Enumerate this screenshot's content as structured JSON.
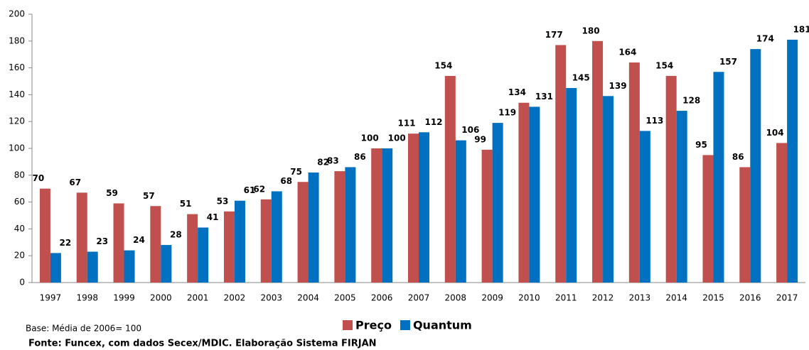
{
  "chart_data": {
    "type": "bar",
    "categories": [
      "1997",
      "1998",
      "1999",
      "2000",
      "2001",
      "2002",
      "2003",
      "2004",
      "2005",
      "2006",
      "2007",
      "2008",
      "2009",
      "2010",
      "2011",
      "2012",
      "2013",
      "2014",
      "2015",
      "2016",
      "2017"
    ],
    "series": [
      {
        "name": "Preço",
        "color": "#c0504d",
        "values": [
          70,
          67,
          59,
          57,
          51,
          53,
          62,
          75,
          83,
          100,
          111,
          154,
          99,
          134,
          177,
          180,
          164,
          154,
          95,
          86,
          104
        ]
      },
      {
        "name": "Quantum",
        "color": "#0070c0",
        "values": [
          22,
          23,
          24,
          28,
          41,
          61,
          68,
          82,
          86,
          100,
          112,
          106,
          119,
          131,
          145,
          139,
          113,
          128,
          157,
          174,
          181
        ]
      }
    ],
    "ylim": [
      0,
      200
    ],
    "yticks": [
      0,
      20,
      40,
      60,
      80,
      100,
      120,
      140,
      160,
      180,
      200
    ],
    "base_note": "Base: Média de 2006= 100",
    "source": "Fonte: Funcex, com dados Secex/MDIC. Elaboração Sistema FIRJAN"
  }
}
